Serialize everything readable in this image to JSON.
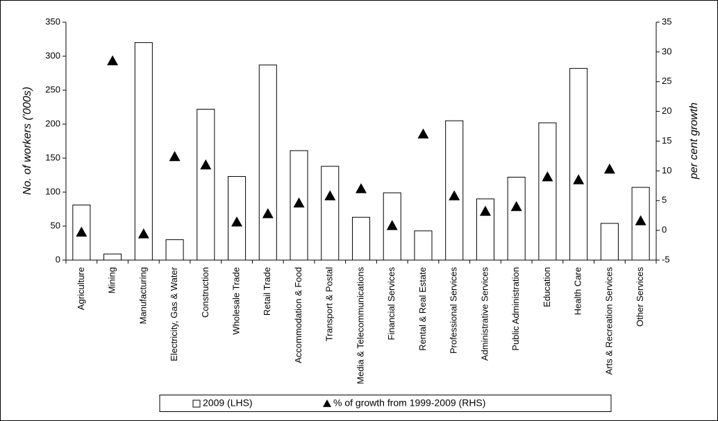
{
  "chart_data": {
    "type": "bar",
    "y_label": "No. of workers ('000s)",
    "y2_label": "per cent growth",
    "categories": [
      "Agriculture",
      "Mining",
      "Manufacturing",
      "Electricity, Gas & Water",
      "Construction",
      "Wholesale Trade",
      "Retail Trade",
      "Accommodation & Food",
      "Transport & Postal",
      "Media & Telecommunications",
      "Financial Services",
      "Rental & Real Estate",
      "Professional Services",
      "Administrative Services",
      "Public Administration",
      "Education",
      "Health Care",
      "Arts & Recreation Services",
      "Other Services"
    ],
    "series": [
      {
        "name": "2009 (LHS)",
        "type": "bar",
        "color": "#ffffff",
        "values": [
          81,
          9,
          320,
          30,
          222,
          123,
          287,
          161,
          138,
          63,
          99,
          43,
          205,
          90,
          122,
          202,
          282,
          54,
          107
        ]
      },
      {
        "name": "% of growth from 1999-2009 (RHS)",
        "type": "scatter",
        "axis": "y2",
        "color": "#000000",
        "values": [
          -0.3,
          28.5,
          -0.6,
          12.4,
          11,
          1.4,
          2.8,
          4.6,
          5.8,
          7,
          0.8,
          16.2,
          5.8,
          3.2,
          4,
          9,
          8.5,
          10.3,
          1.6
        ]
      }
    ],
    "ylim": [
      0,
      350
    ],
    "yticks": [
      0,
      50,
      100,
      150,
      200,
      250,
      300,
      350
    ],
    "y2lim": [
      -5,
      35
    ],
    "y2ticks": [
      -5,
      0,
      5,
      10,
      15,
      20,
      25,
      30,
      35
    ],
    "grid": false,
    "legend": "bottom"
  }
}
